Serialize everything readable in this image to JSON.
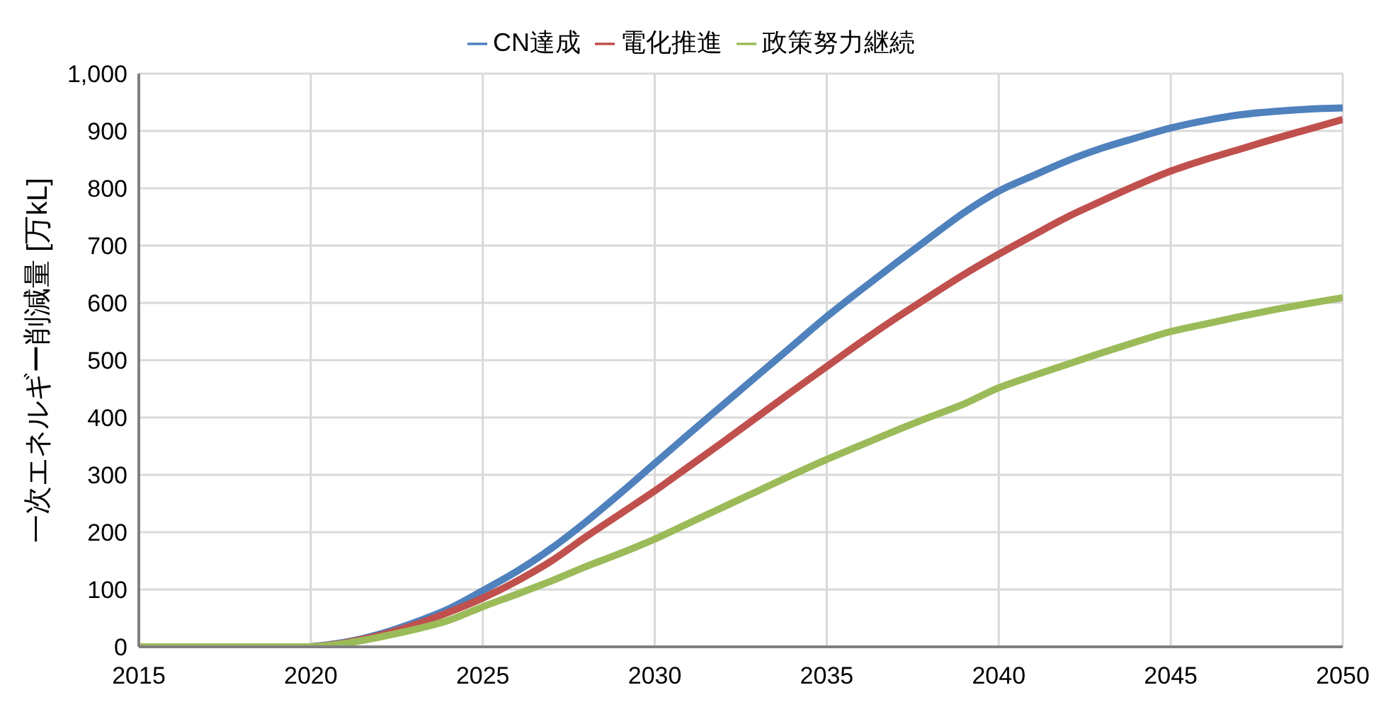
{
  "chart_data": {
    "type": "line",
    "ylabel": "一次エネルギー削減量 [万kL]",
    "x": [
      2015,
      2016,
      2017,
      2018,
      2019,
      2020,
      2021,
      2022,
      2023,
      2024,
      2025,
      2026,
      2027,
      2028,
      2029,
      2030,
      2031,
      2032,
      2033,
      2034,
      2035,
      2036,
      2037,
      2038,
      2039,
      2040,
      2041,
      2042,
      2043,
      2044,
      2045,
      2046,
      2047,
      2048,
      2049,
      2050
    ],
    "series": [
      {
        "name": "CN達成",
        "color": "#4f81bd",
        "values": [
          null,
          null,
          null,
          null,
          null,
          0,
          8,
          22,
          42,
          66,
          98,
          132,
          172,
          218,
          268,
          320,
          372,
          423,
          474,
          525,
          576,
          623,
          669,
          714,
          758,
          795,
          822,
          848,
          870,
          888,
          905,
          918,
          928,
          934,
          938,
          940
        ]
      },
      {
        "name": "電化推進",
        "color": "#c0504d",
        "values": [
          null,
          null,
          null,
          null,
          null,
          0,
          7,
          20,
          38,
          60,
          85,
          115,
          150,
          192,
          232,
          272,
          315,
          358,
          402,
          446,
          489,
          532,
          573,
          612,
          650,
          685,
          718,
          750,
          778,
          805,
          830,
          850,
          868,
          886,
          903,
          920
        ]
      },
      {
        "name": "政策努力継続",
        "color": "#9bbb59",
        "values": [
          0,
          0,
          0,
          0,
          0,
          0,
          6,
          17,
          30,
          46,
          70,
          92,
          115,
          140,
          163,
          188,
          216,
          244,
          272,
          300,
          327,
          352,
          377,
          401,
          424,
          452,
          473,
          493,
          513,
          532,
          550,
          563,
          576,
          588,
          599,
          609
        ]
      }
    ],
    "xlim": [
      2015,
      2050
    ],
    "xticks": [
      2015,
      2020,
      2025,
      2030,
      2035,
      2040,
      2045,
      2050
    ],
    "ylim": [
      0,
      1000
    ],
    "yticks": [
      0,
      100,
      200,
      300,
      400,
      500,
      600,
      700,
      800,
      900,
      {
        "value": 1000,
        "label": "1,000"
      }
    ],
    "grid": true,
    "legend": "top",
    "marker": "none",
    "line_style": "solid"
  }
}
